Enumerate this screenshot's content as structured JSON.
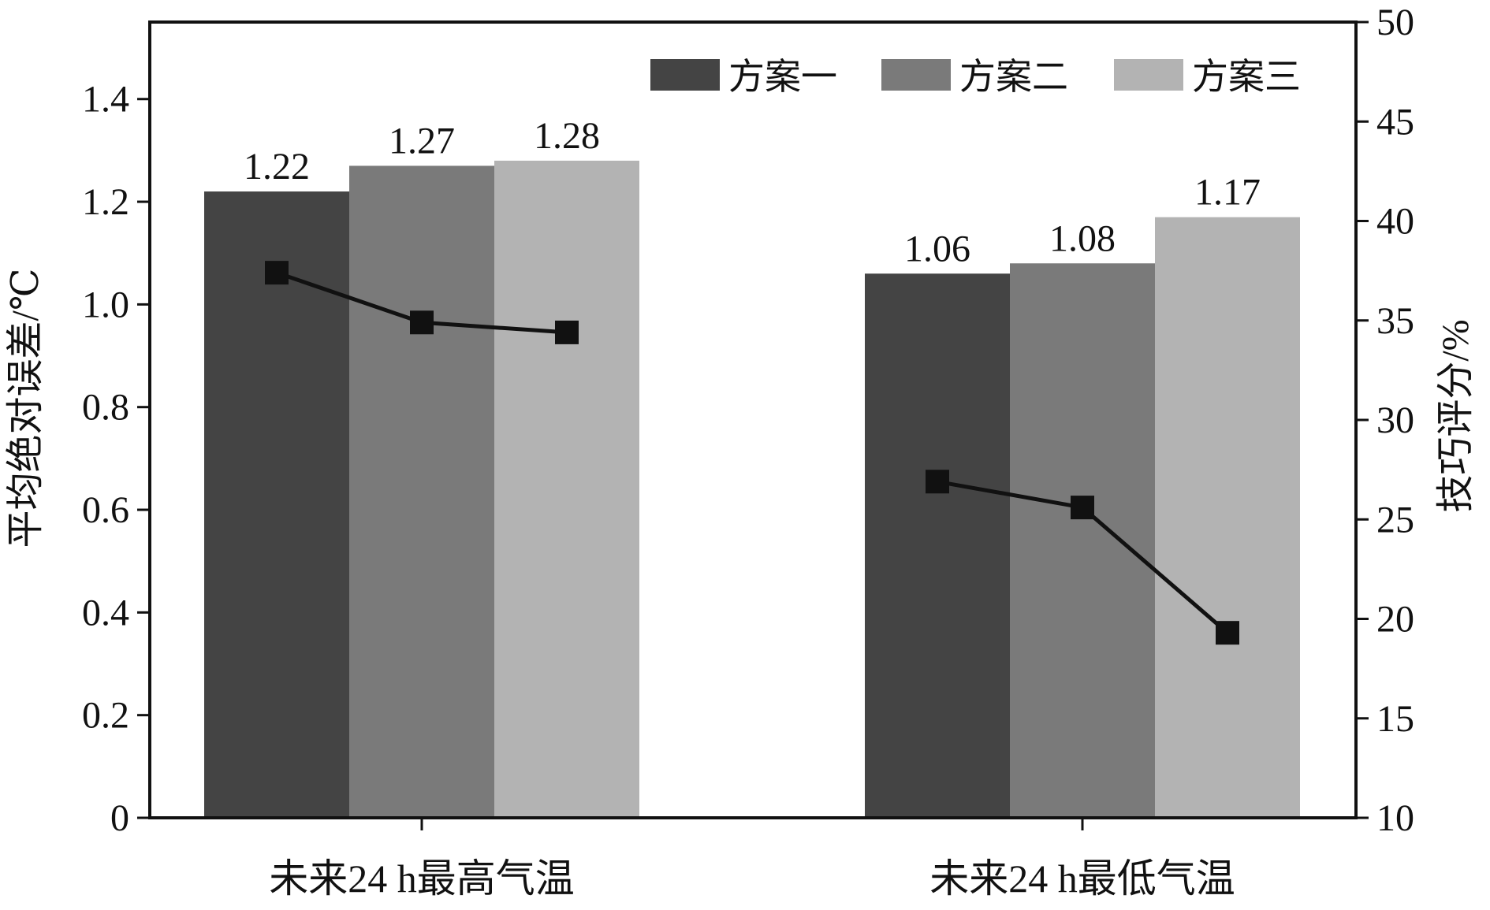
{
  "chart_data": {
    "type": "bar",
    "categories": [
      "未来24 h最高气温",
      "未来24 h最低气温"
    ],
    "series": [
      {
        "name": "方案一",
        "values": [
          1.22,
          1.06
        ],
        "color": "#444444"
      },
      {
        "name": "方案二",
        "values": [
          1.27,
          1.08
        ],
        "color": "#7a7a7a"
      },
      {
        "name": "方案三",
        "values": [
          1.28,
          1.17
        ],
        "color": "#b3b3b3"
      }
    ],
    "data_labels": [
      [
        "1.22",
        "1.06"
      ],
      [
        "1.27",
        "1.08"
      ],
      [
        "1.28",
        "1.17"
      ]
    ],
    "line_series": {
      "axis": "right",
      "color": "#111111",
      "marker": "square",
      "values": [
        [
          37.4,
          34.9,
          34.4
        ],
        [
          26.9,
          25.6,
          19.3
        ]
      ]
    },
    "ylabel": "平均绝对误差/℃",
    "y2label": "技巧评分/%",
    "ylim": [
      0,
      1.55
    ],
    "y2lim": [
      10,
      50
    ],
    "yticks": [
      "0",
      "0.2",
      "0.4",
      "0.6",
      "0.8",
      "1.0",
      "1.2",
      "1.4"
    ],
    "y2ticks": [
      "10",
      "15",
      "20",
      "25",
      "30",
      "35",
      "40",
      "45",
      "50"
    ],
    "legend_placement": "top-right",
    "grid": false
  }
}
